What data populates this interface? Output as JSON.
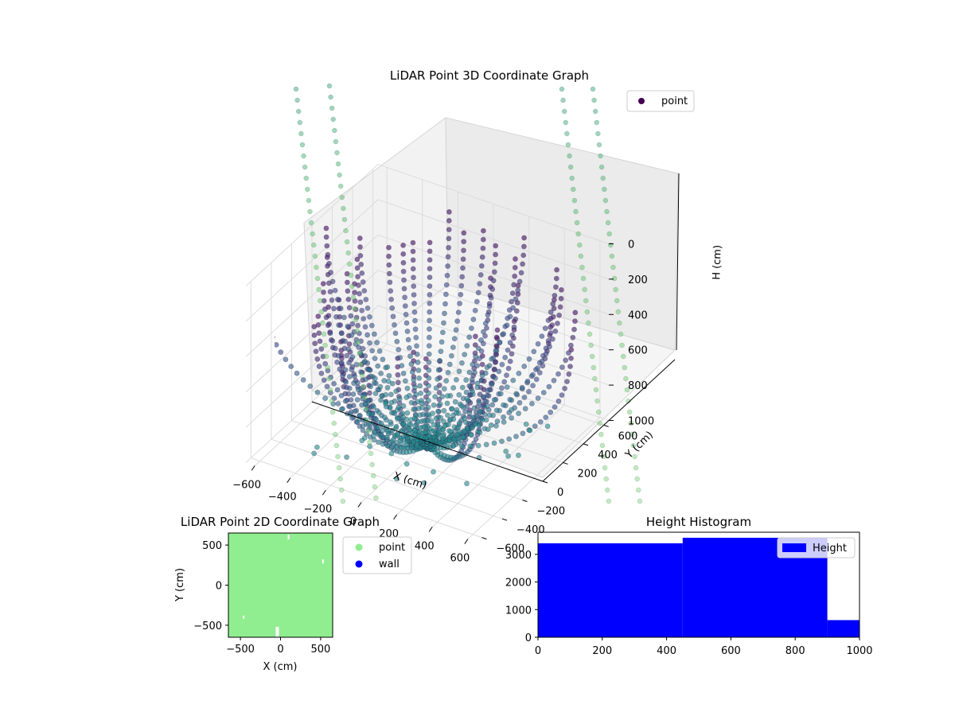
{
  "colors": {
    "viridis_dark": "#440154",
    "viridis_mid": "#3b528b",
    "teal": "#5fa3c4",
    "light_green": "#90ee90",
    "blue": "#0000ff"
  },
  "chart_data": [
    {
      "type": "scatter",
      "projection": "3d",
      "title": "LiDAR Point 3D Coordinate Graph",
      "xlabel": "X (cm)",
      "ylabel": "Y (cm)",
      "zlabel": "H (cm)",
      "xlim": [
        -650,
        650
      ],
      "ylim": [
        -650,
        650
      ],
      "zlim": [
        0,
        1000
      ],
      "z_inverted": true,
      "xticks": [
        "−600",
        "−400",
        "−200",
        "0",
        "200",
        "400",
        "600"
      ],
      "yticks": [
        "−600",
        "−400",
        "−200",
        "0",
        "200",
        "400",
        "600"
      ],
      "zticks": [
        "0",
        "200",
        "400",
        "600",
        "800",
        "1000"
      ],
      "legend": {
        "position": "top-right",
        "entries": [
          "point"
        ]
      },
      "colormap": "viridis",
      "grid": true
    },
    {
      "type": "scatter",
      "title": "LiDAR Point 2D Coordinate Graph",
      "xlabel": "X (cm)",
      "ylabel": "Y (cm)",
      "xlim": [
        -650,
        650
      ],
      "ylim": [
        -650,
        650
      ],
      "xticks": [
        "−500",
        "0",
        "500"
      ],
      "yticks": [
        "−500",
        "0",
        "500"
      ],
      "series": [
        {
          "name": "point",
          "color": "#90ee90"
        },
        {
          "name": "wall",
          "color": "#0000ff"
        }
      ],
      "legend": {
        "position": "outside-right",
        "entries": [
          "point",
          "wall"
        ]
      }
    },
    {
      "type": "bar",
      "title": "Height Histogram",
      "bins": [
        [
          0,
          450
        ],
        [
          450,
          900
        ],
        [
          900,
          1000
        ]
      ],
      "values": [
        3400,
        3600,
        620
      ],
      "xlim": [
        0,
        1000
      ],
      "ylim": [
        0,
        3800
      ],
      "xticks": [
        "0",
        "200",
        "400",
        "600",
        "800",
        "1000"
      ],
      "yticks": [
        "0",
        "1000",
        "2000",
        "3000"
      ],
      "series": [
        {
          "name": "Height",
          "color": "#0000ff"
        }
      ],
      "legend": {
        "position": "top-right",
        "entries": [
          "Height"
        ]
      }
    }
  ]
}
